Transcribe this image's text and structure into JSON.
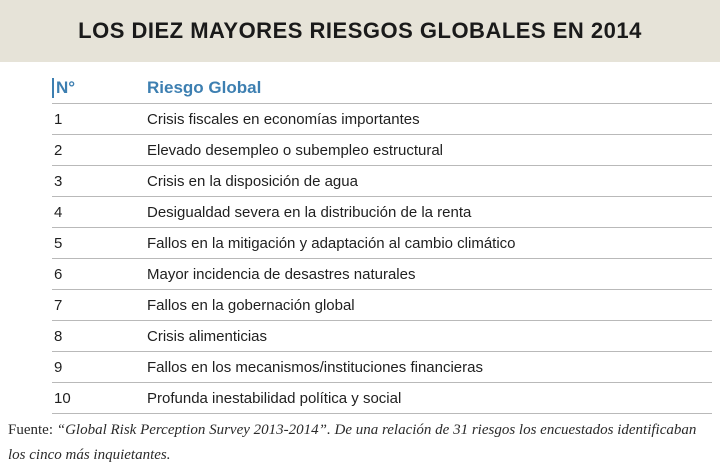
{
  "title": "LOS DIEZ MAYORES RIESGOS GLOBALES EN 2014",
  "table": {
    "headers": {
      "number": "N°",
      "risk": "Riesgo Global"
    },
    "rows": [
      {
        "n": "1",
        "risk": "Crisis fiscales en economías importantes"
      },
      {
        "n": "2",
        "risk": "Elevado desempleo o subempleo estructural"
      },
      {
        "n": "3",
        "risk": "Crisis en la disposición de agua"
      },
      {
        "n": "4",
        "risk": "Desigualdad severa en la distribución de la renta"
      },
      {
        "n": "5",
        "risk": "Fallos en la mitigación y adaptación al cambio climático"
      },
      {
        "n": "6",
        "risk": "Mayor incidencia de desastres naturales"
      },
      {
        "n": "7",
        "risk": "Fallos en la gobernación global"
      },
      {
        "n": "8",
        "risk": "Crisis alimenticias"
      },
      {
        "n": "9",
        "risk": "Fallos en los mecanismos/instituciones financieras"
      },
      {
        "n": "10",
        "risk": "Profunda inestabilidad política y social"
      }
    ]
  },
  "source": {
    "label": "Fuente: ",
    "text": "“Global Risk Perception Survey 2013-2014”. De una relación de 31 riesgos los encuestados identificaban los cinco más inquietantes."
  },
  "colors": {
    "banner": "#e6e3d8",
    "header_accent": "#3d7fb1"
  }
}
